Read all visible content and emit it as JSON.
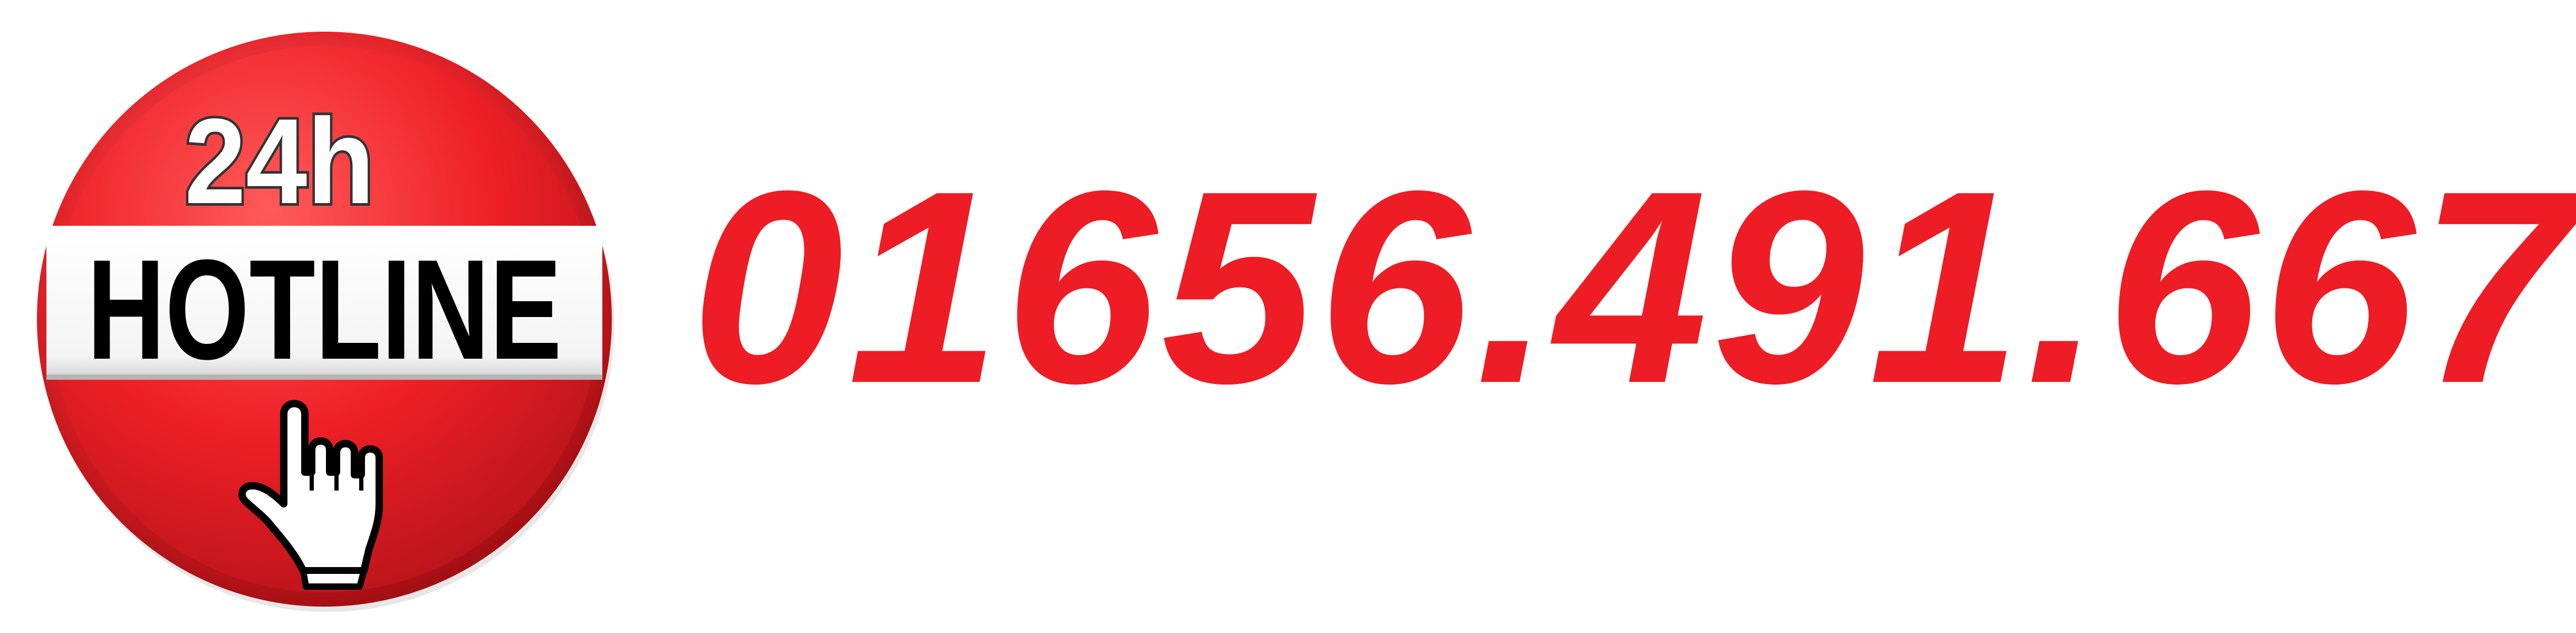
{
  "badge": {
    "top_text": "24h",
    "banner_text": "HOTLINE",
    "icon": "pointing-hand-icon"
  },
  "phone_number": "01656.491.667",
  "colors": {
    "accent_red": "#ee1c25",
    "badge_red": "#e8232a",
    "banner_white": "#ffffff",
    "text_black": "#000000"
  }
}
